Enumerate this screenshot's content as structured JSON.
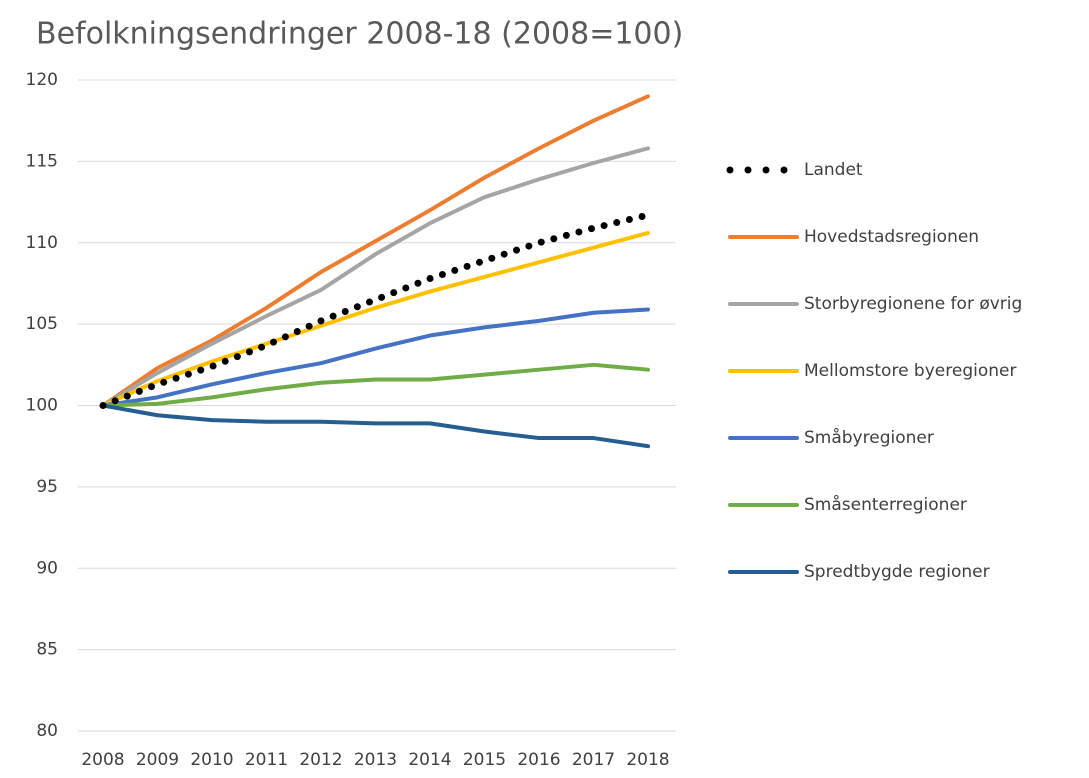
{
  "chart_data": {
    "type": "line",
    "title": "Befolkningsendringer 2008-18 (2008=100)",
    "categories": [
      "2008",
      "2009",
      "2010",
      "2011",
      "2012",
      "2013",
      "2014",
      "2015",
      "2016",
      "2017",
      "2018"
    ],
    "ylim": [
      80,
      120
    ],
    "yticks": [
      80,
      85,
      90,
      95,
      100,
      105,
      110,
      115,
      120
    ],
    "grid": true,
    "series": [
      {
        "name": "Landet",
        "color": "#000000",
        "dashed": true,
        "values": [
          100,
          101.3,
          102.4,
          103.7,
          105.2,
          106.5,
          107.8,
          108.9,
          110,
          110.9,
          111.7
        ]
      },
      {
        "name": "Hovedstadsregionen",
        "color": "#ed7d31",
        "values": [
          100,
          102.3,
          104,
          106,
          108.2,
          110.1,
          112,
          114,
          115.8,
          117.5,
          119
        ]
      },
      {
        "name": "Storbyregionene for øvrig",
        "color": "#a5a5a5",
        "values": [
          100,
          102,
          103.8,
          105.5,
          107.1,
          109.3,
          111.2,
          112.8,
          113.9,
          114.9,
          115.8
        ]
      },
      {
        "name": "Mellomstore byeregioner",
        "color": "#ffc000",
        "values": [
          100,
          101.5,
          102.7,
          103.8,
          104.9,
          106,
          107,
          107.9,
          108.8,
          109.7,
          110.6
        ]
      },
      {
        "name": "Småbyregioner",
        "color": "#4472c4",
        "values": [
          100,
          100.5,
          101.3,
          102,
          102.6,
          103.5,
          104.3,
          104.8,
          105.2,
          105.7,
          105.9
        ]
      },
      {
        "name": "Småsenterregioner",
        "color": "#70ad47",
        "values": [
          100,
          100.1,
          100.5,
          101,
          101.4,
          101.6,
          101.6,
          101.9,
          102.2,
          102.5,
          102.2
        ]
      },
      {
        "name": "Spredtbygde regioner",
        "color": "#255e91",
        "values": [
          100,
          99.4,
          99.1,
          99.0,
          99.0,
          98.9,
          98.9,
          98.4,
          98.0,
          98.0,
          97.5
        ]
      }
    ]
  }
}
